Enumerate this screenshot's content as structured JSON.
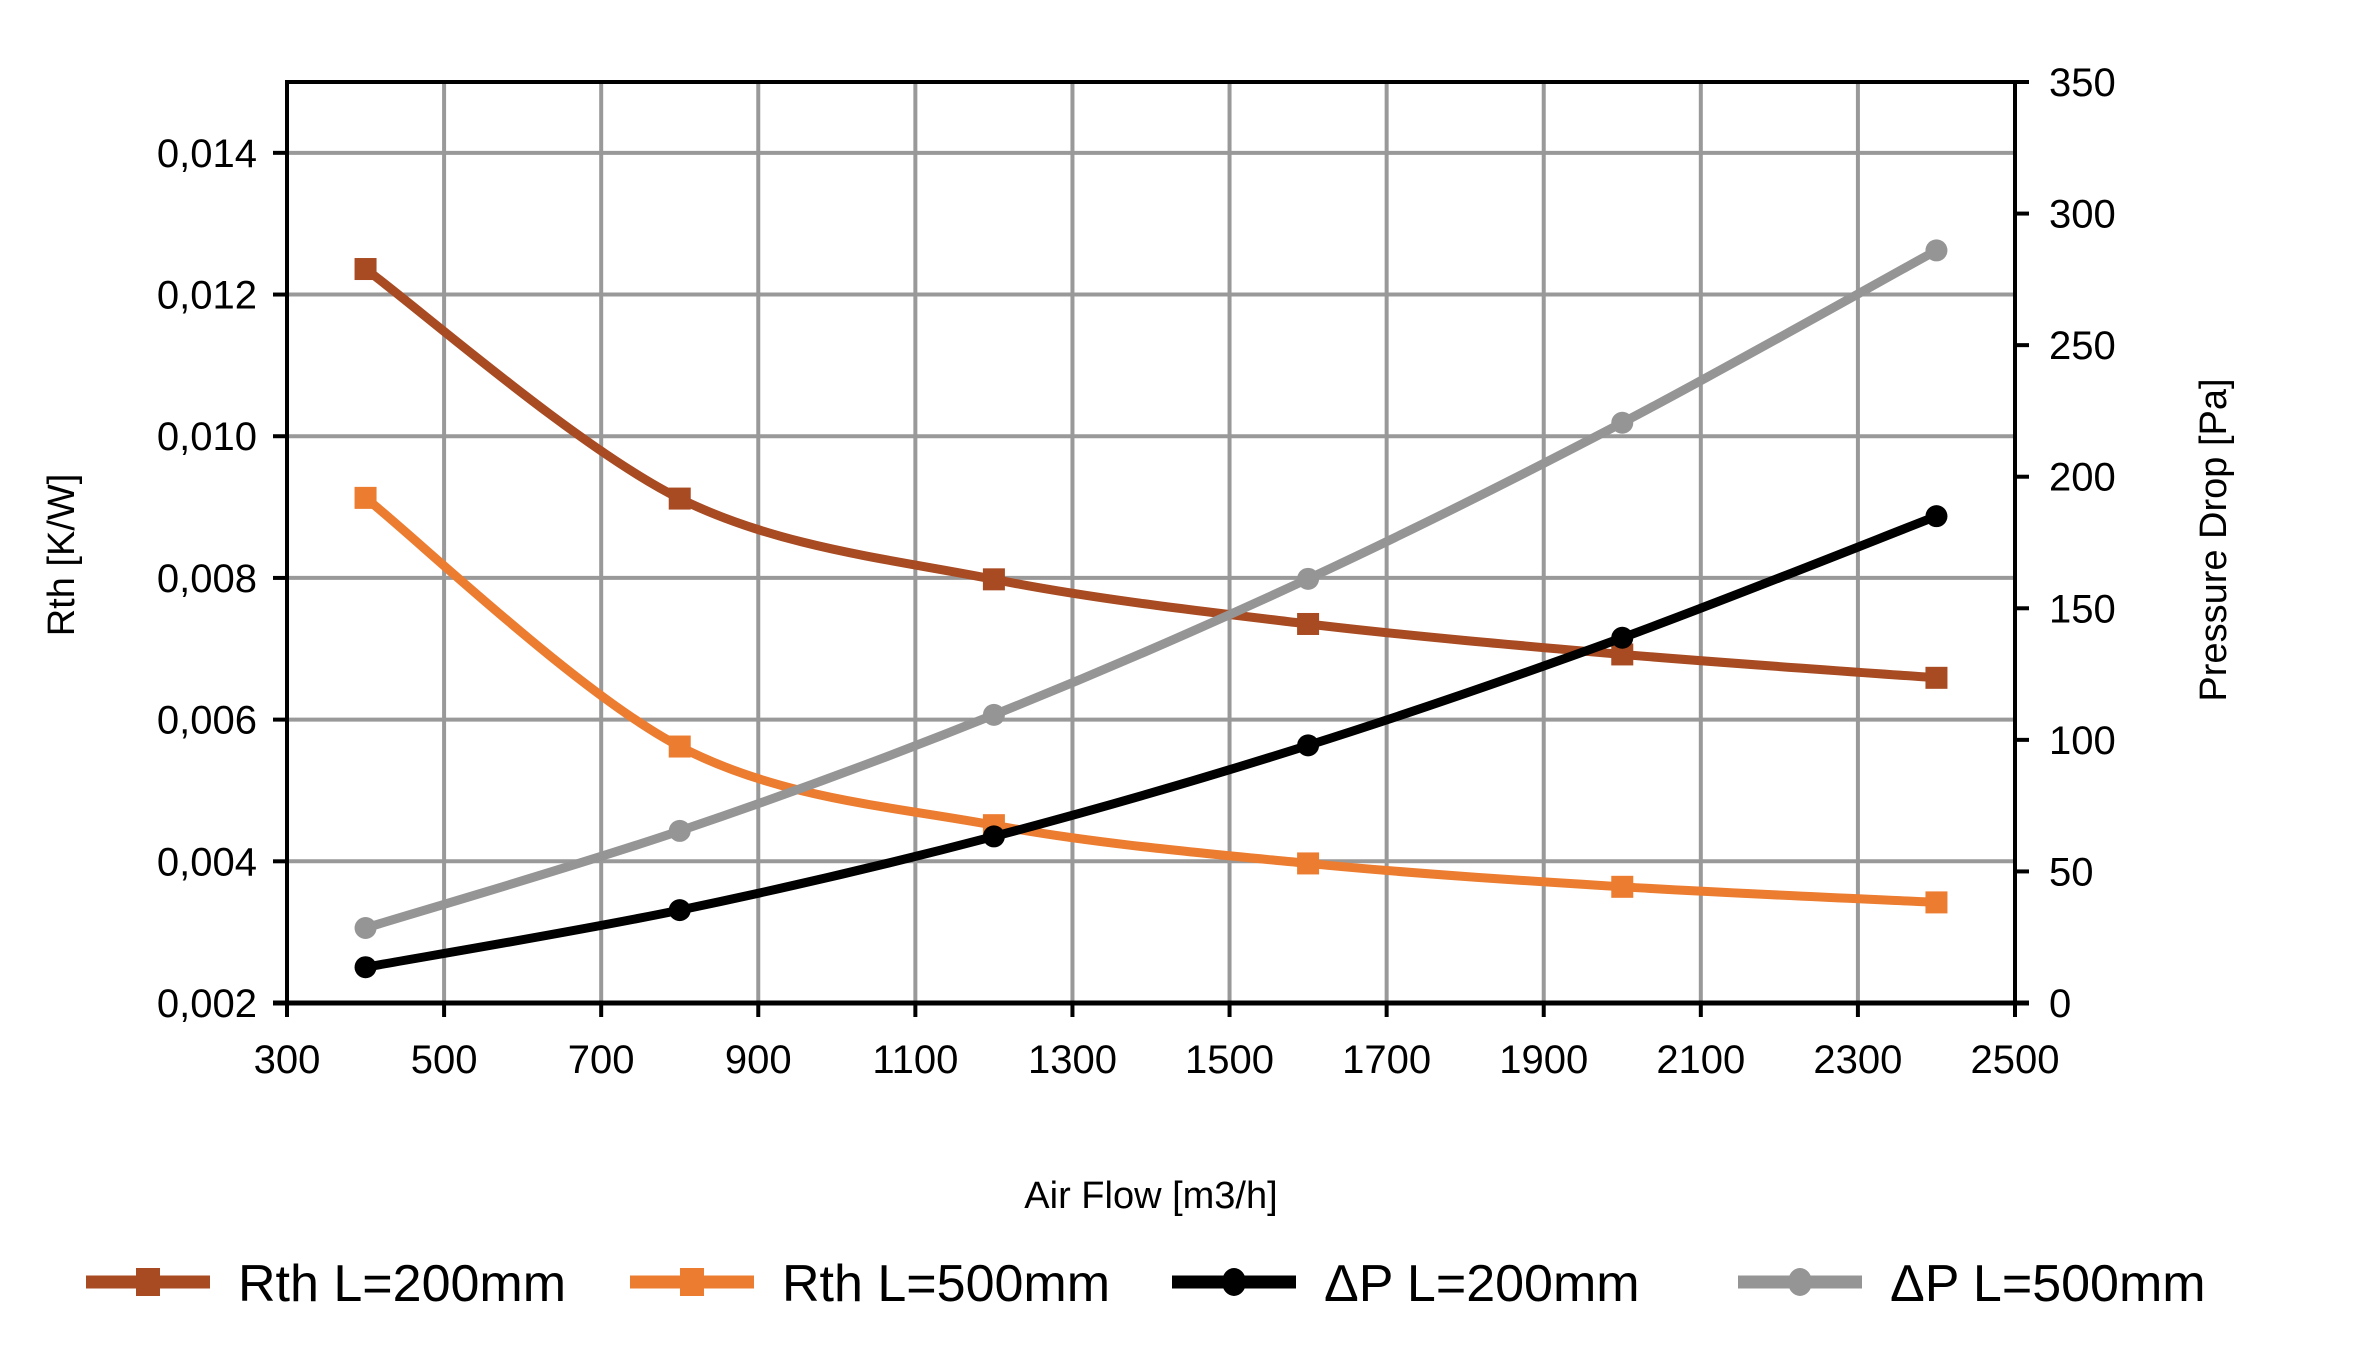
{
  "chart_data": {
    "type": "line",
    "title": "",
    "xlabel": "Air Flow [m3/h]",
    "ylabel": "Rth [K/W]",
    "y2label": "Pressure Drop [Pa]",
    "xlim": [
      300,
      2500
    ],
    "ylim": [
      0.002,
      0.015
    ],
    "y2lim": [
      0,
      350
    ],
    "grid": true,
    "legend_position": "bottom",
    "x_ticks": [
      "300",
      "500",
      "700",
      "900",
      "1100",
      "1300",
      "1500",
      "1700",
      "1900",
      "2100",
      "2300",
      "2500"
    ],
    "x_tick_values": [
      300,
      500,
      700,
      900,
      1100,
      1300,
      1500,
      1700,
      1900,
      2100,
      2300,
      2500
    ],
    "y_ticks": [
      "0,002",
      "0,004",
      "0,006",
      "0,008",
      "0,010",
      "0,012",
      "0,014"
    ],
    "y_tick_values": [
      0.002,
      0.004,
      0.006,
      0.008,
      0.01,
      0.012,
      0.014
    ],
    "y2_ticks": [
      "0",
      "50",
      "100",
      "150",
      "200",
      "250",
      "300",
      "350"
    ],
    "y2_tick_values": [
      0,
      50,
      100,
      150,
      200,
      250,
      300,
      350
    ],
    "x": [
      400,
      800,
      1200,
      1600,
      2000,
      2400
    ],
    "series": [
      {
        "name": "Rth L=200mm",
        "axis": "left",
        "marker": "square",
        "color": "#a84a22",
        "values": [
          0.01236,
          0.00912,
          0.00798,
          0.00735,
          0.00692,
          0.00659
        ]
      },
      {
        "name": "Rth L=500mm",
        "axis": "left",
        "marker": "square",
        "color": "#ec7c30",
        "values": [
          0.00913,
          0.00562,
          0.00451,
          0.00397,
          0.00364,
          0.00342
        ]
      },
      {
        "name": "ΔP L=200mm",
        "axis": "right",
        "marker": "circle",
        "color": "#000000",
        "values": [
          13.6,
          35.3,
          63.3,
          97.9,
          138.8,
          185.0
        ]
      },
      {
        "name": "ΔP L=500mm",
        "axis": "right",
        "marker": "circle",
        "color": "#959595",
        "values": [
          28.5,
          65.4,
          109.5,
          161.2,
          220.5,
          286.0
        ]
      }
    ]
  }
}
